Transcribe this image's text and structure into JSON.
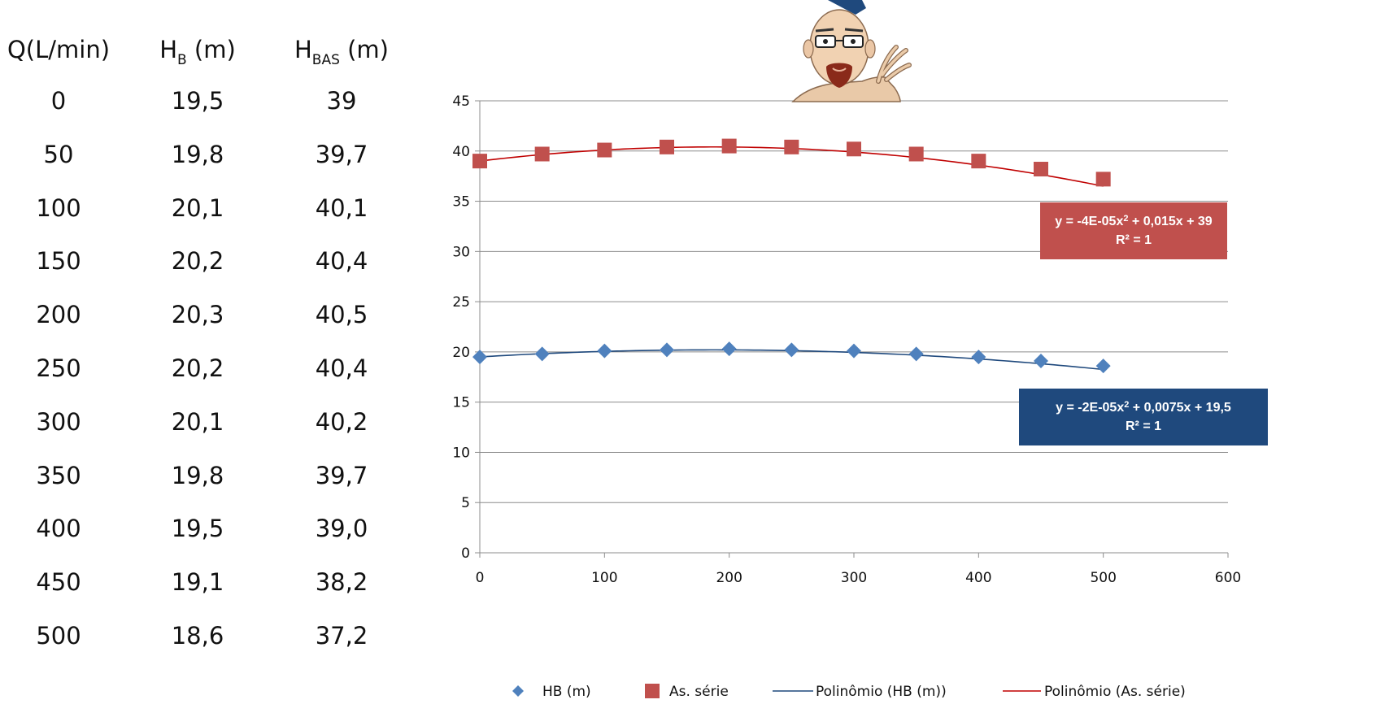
{
  "table": {
    "headers": {
      "q": "Q(L/min)",
      "hb_main": "H",
      "hb_sub": "B",
      "hb_unit": " (m)",
      "hbas_main": "H",
      "hbas_sub": "BAS",
      "hbas_unit": " (m)"
    },
    "rows": [
      {
        "q": "0",
        "hb": "19,5",
        "hbas": "39"
      },
      {
        "q": "50",
        "hb": "19,8",
        "hbas": "39,7"
      },
      {
        "q": "100",
        "hb": "20,1",
        "hbas": "40,1"
      },
      {
        "q": "150",
        "hb": "20,2",
        "hbas": "40,4"
      },
      {
        "q": "200",
        "hb": "20,3",
        "hbas": "40,5"
      },
      {
        "q": "250",
        "hb": "20,2",
        "hbas": "40,4"
      },
      {
        "q": "300",
        "hb": "20,1",
        "hbas": "40,2"
      },
      {
        "q": "350",
        "hb": "19,8",
        "hbas": "39,7"
      },
      {
        "q": "400",
        "hb": "19,5",
        "hbas": "39,0"
      },
      {
        "q": "450",
        "hb": "19,1",
        "hbas": "38,2"
      },
      {
        "q": "500",
        "hb": "18,6",
        "hbas": "37,2"
      }
    ]
  },
  "chart_data": {
    "type": "scatter",
    "xlim": [
      0,
      600
    ],
    "ylim": [
      0,
      45
    ],
    "x_ticks": [
      0,
      100,
      200,
      300,
      400,
      500,
      600
    ],
    "y_ticks": [
      0,
      5,
      10,
      15,
      20,
      25,
      30,
      35,
      40,
      45
    ],
    "grid": "horizontal",
    "legend_position": "bottom",
    "x": [
      0,
      50,
      100,
      150,
      200,
      250,
      300,
      350,
      400,
      450,
      500
    ],
    "series": [
      {
        "name": "HB (m)",
        "marker": "diamond",
        "color": "#4F81BD",
        "values": [
          19.5,
          19.8,
          20.1,
          20.2,
          20.3,
          20.2,
          20.1,
          19.8,
          19.5,
          19.1,
          18.6
        ]
      },
      {
        "name": "As. série",
        "marker": "square",
        "color": "#C0504D",
        "values": [
          39,
          39.7,
          40.1,
          40.4,
          40.5,
          40.4,
          40.2,
          39.7,
          39.0,
          38.2,
          37.2
        ]
      }
    ],
    "trendlines": [
      {
        "name": "Polinômio (HB (m))",
        "color": "#1F497D",
        "coef": [
          -2e-05,
          0.0075,
          19.5
        ],
        "equation_line1_pre": "y = -2E-05x",
        "equation_line1_post": " + 0,0075x + 19,5",
        "equation_line2": "R² = 1",
        "box_color": "#1F497D"
      },
      {
        "name": "Polinômio (As. série)",
        "color": "#C00000",
        "coef": [
          -4e-05,
          0.015,
          39
        ],
        "equation_line1_pre": "y = -4E-05x",
        "equation_line1_post": " + 0,015x + 39",
        "equation_line2": "R² = 1",
        "box_color": "#C0504D"
      }
    ],
    "legend": [
      "HB (m)",
      "As. série",
      "Polinômio (HB (m))",
      "Polinômio (As. série)"
    ]
  }
}
